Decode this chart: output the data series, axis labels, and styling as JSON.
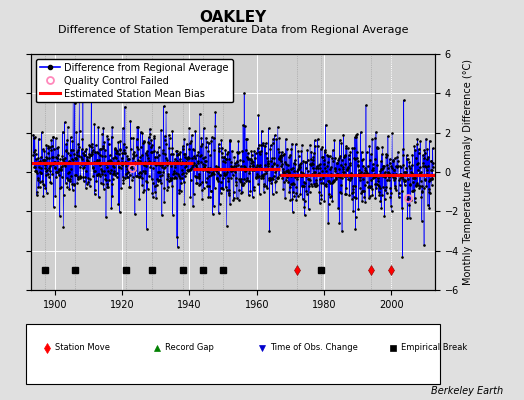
{
  "title": "OAKLEY",
  "subtitle": "Difference of Station Temperature Data from Regional Average",
  "ylabel_right": "Monthly Temperature Anomaly Difference (°C)",
  "credit": "Berkeley Earth",
  "xlim": [
    1893,
    2013
  ],
  "ylim": [
    -6,
    6
  ],
  "yticks": [
    -6,
    -4,
    -2,
    0,
    2,
    4,
    6
  ],
  "xticks": [
    1900,
    1920,
    1940,
    1960,
    1980,
    2000
  ],
  "background_color": "#e0e0e0",
  "plot_bg_color": "#d0d0d0",
  "grid_color": "#ffffff",
  "bias_segments": [
    {
      "x_start": 1893,
      "x_end": 1941,
      "bias": 0.45
    },
    {
      "x_start": 1941,
      "x_end": 1967,
      "bias": 0.15
    },
    {
      "x_start": 1967,
      "x_end": 2013,
      "bias": -0.15
    }
  ],
  "station_moves": [
    1972,
    1994,
    2000
  ],
  "empirical_breaks": [
    1897,
    1906,
    1921,
    1929,
    1938,
    1944,
    1950,
    1979
  ],
  "obs_changes": [],
  "record_gaps": [],
  "qc_failed_approx": [
    1923,
    2005
  ],
  "seed": 42,
  "n_points": 1440,
  "x_start": 1893.5,
  "x_end": 2012.5,
  "marker_y": -5.0,
  "line_color": "#0000ff",
  "dot_color": "#000000",
  "bias_color": "#ff0000",
  "qc_color": "#ff88bb",
  "station_move_color": "#ff0000",
  "empirical_break_color": "#000000",
  "title_fontsize": 11,
  "subtitle_fontsize": 8,
  "tick_fontsize": 7,
  "ylabel_fontsize": 7,
  "legend_fontsize": 7,
  "credit_fontsize": 7
}
